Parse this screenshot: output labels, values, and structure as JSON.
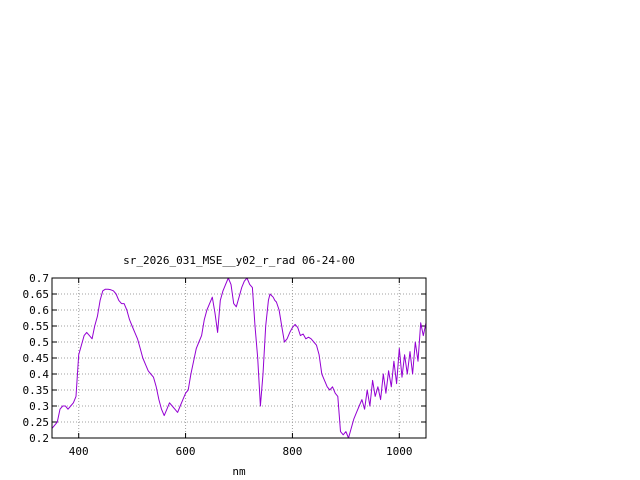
{
  "chart_data": {
    "type": "line",
    "title": "sr_2026_031_MSE__y02_r_rad 06-24-00",
    "xlabel": "nm",
    "ylabel": "",
    "xlim": [
      350,
      1050
    ],
    "ylim": [
      0.2,
      0.7
    ],
    "xticks": [
      400,
      600,
      800,
      1000
    ],
    "xtick_labels": [
      "400",
      "600",
      "800",
      "1000"
    ],
    "yticks": [
      0.2,
      0.25,
      0.3,
      0.35,
      0.4,
      0.45,
      0.5,
      0.55,
      0.6,
      0.65,
      0.7
    ],
    "ytick_labels": [
      "0.2",
      "0.25",
      "0.3",
      "0.35",
      "0.4",
      "0.45",
      "0.5",
      "0.55",
      "0.6",
      "0.65",
      "0.7"
    ],
    "grid": true,
    "series_color": "#9400d3",
    "series": [
      {
        "x": [
          350,
          355,
          360,
          365,
          370,
          375,
          380,
          385,
          390,
          395,
          400,
          405,
          410,
          415,
          420,
          425,
          430,
          435,
          440,
          445,
          450,
          455,
          460,
          465,
          470,
          475,
          480,
          485,
          490,
          495,
          500,
          505,
          510,
          515,
          520,
          525,
          530,
          535,
          540,
          545,
          550,
          555,
          560,
          565,
          570,
          575,
          580,
          585,
          590,
          595,
          600,
          605,
          610,
          615,
          620,
          625,
          630,
          635,
          640,
          645,
          650,
          655,
          660,
          665,
          670,
          675,
          680,
          685,
          690,
          695,
          700,
          705,
          710,
          715,
          720,
          725,
          730,
          735,
          740,
          745,
          750,
          755,
          758,
          761,
          764,
          767,
          770,
          775,
          780,
          785,
          790,
          795,
          800,
          805,
          810,
          815,
          820,
          825,
          830,
          835,
          840,
          845,
          850,
          855,
          860,
          865,
          870,
          875,
          880,
          885,
          890,
          895,
          900,
          905,
          910,
          915,
          920,
          925,
          930,
          935,
          940,
          945,
          950,
          955,
          960,
          965,
          970,
          975,
          980,
          985,
          990,
          995,
          1000,
          1005,
          1010,
          1015,
          1020,
          1025,
          1030,
          1035,
          1040,
          1045,
          1050
        ],
        "y": [
          0.23,
          0.24,
          0.25,
          0.29,
          0.3,
          0.3,
          0.29,
          0.3,
          0.31,
          0.33,
          0.46,
          0.49,
          0.52,
          0.53,
          0.52,
          0.51,
          0.55,
          0.58,
          0.63,
          0.66,
          0.665,
          0.665,
          0.663,
          0.66,
          0.65,
          0.63,
          0.62,
          0.62,
          0.6,
          0.57,
          0.55,
          0.53,
          0.51,
          0.48,
          0.45,
          0.43,
          0.41,
          0.4,
          0.39,
          0.36,
          0.32,
          0.29,
          0.27,
          0.29,
          0.31,
          0.3,
          0.29,
          0.28,
          0.3,
          0.32,
          0.34,
          0.35,
          0.4,
          0.44,
          0.48,
          0.5,
          0.52,
          0.57,
          0.6,
          0.62,
          0.64,
          0.59,
          0.53,
          0.63,
          0.66,
          0.68,
          0.7,
          0.68,
          0.62,
          0.61,
          0.64,
          0.67,
          0.69,
          0.7,
          0.68,
          0.67,
          0.55,
          0.45,
          0.3,
          0.4,
          0.55,
          0.63,
          0.65,
          0.645,
          0.64,
          0.63,
          0.625,
          0.6,
          0.55,
          0.5,
          0.51,
          0.53,
          0.545,
          0.555,
          0.545,
          0.52,
          0.525,
          0.51,
          0.515,
          0.51,
          0.5,
          0.49,
          0.46,
          0.4,
          0.38,
          0.36,
          0.35,
          0.36,
          0.34,
          0.33,
          0.22,
          0.21,
          0.22,
          0.2,
          0.23,
          0.26,
          0.28,
          0.3,
          0.32,
          0.29,
          0.35,
          0.3,
          0.38,
          0.33,
          0.36,
          0.32,
          0.4,
          0.34,
          0.41,
          0.36,
          0.44,
          0.37,
          0.48,
          0.39,
          0.46,
          0.4,
          0.47,
          0.4,
          0.5,
          0.44,
          0.56,
          0.52,
          0.56
        ]
      }
    ]
  }
}
